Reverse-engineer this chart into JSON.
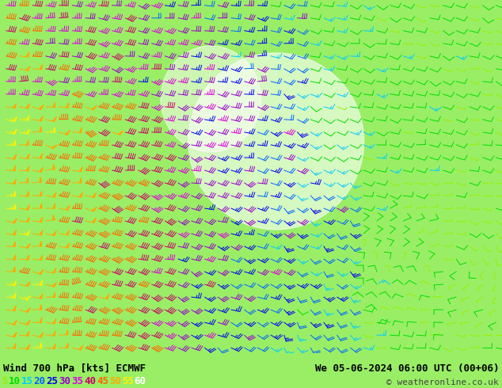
{
  "title_left": "Wind 700 hPa [kts] ECMWF",
  "title_right": "We 05-06-2024 06:00 UTC (00+06)",
  "copyright": "© weatheronline.co.uk",
  "bg_color": "#99ee66",
  "bottom_bar_color": "#ffffff",
  "text_color": "#000000",
  "fig_width": 6.34,
  "fig_height": 4.9,
  "dpi": 100,
  "legend_values": [
    "5",
    "10",
    "15",
    "20",
    "25",
    "30",
    "35",
    "40",
    "45",
    "50",
    "55",
    "60"
  ],
  "legend_colors": [
    "#99ee00",
    "#00dd00",
    "#00ccff",
    "#0066ff",
    "#0000ee",
    "#9900cc",
    "#dd00dd",
    "#cc0066",
    "#ff6600",
    "#ffaa00",
    "#ffee00",
    "#ffffff"
  ],
  "speed_thresholds": [
    0,
    10,
    15,
    20,
    25,
    30,
    35,
    40,
    45,
    50,
    55,
    60,
    999
  ],
  "speed_colors": [
    "#99ee00",
    "#00dd00",
    "#00ccff",
    "#0066ff",
    "#0000ee",
    "#9900cc",
    "#dd00dd",
    "#cc0066",
    "#ff6600",
    "#ffaa00",
    "#ffee00",
    "#ffffff"
  ],
  "map_green_light": "#ccff99",
  "map_green_dark": "#66cc33",
  "map_white": "#ffffff",
  "map_border": "#aaaaaa"
}
